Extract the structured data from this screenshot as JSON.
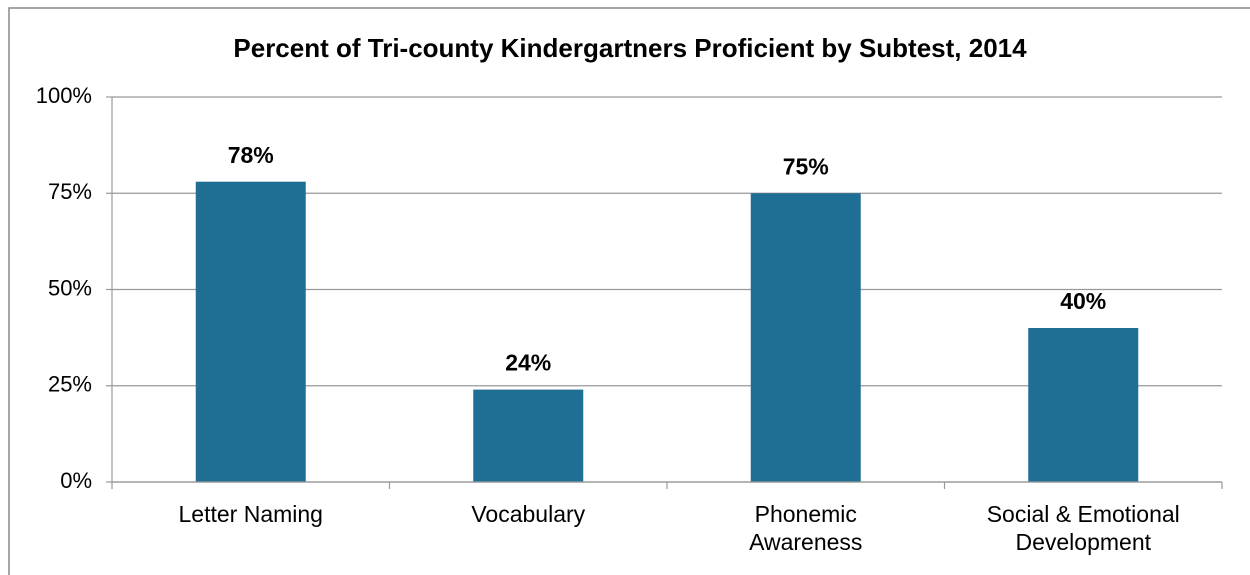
{
  "chart_data": {
    "type": "bar",
    "title": "Percent of Tri-county Kindergartners Proficient by Subtest, 2014",
    "categories": [
      "Letter Naming",
      "Vocabulary",
      "Phonemic\nAwareness",
      "Social & Emotional\nDevelopment"
    ],
    "values": [
      78,
      24,
      75,
      40
    ],
    "value_labels": [
      "78%",
      "24%",
      "75%",
      "40%"
    ],
    "color": "#1f6e94",
    "ylim": [
      0,
      100
    ],
    "yticks": [
      {
        "value": 0,
        "label": "0%"
      },
      {
        "value": 25,
        "label": "25%"
      },
      {
        "value": 50,
        "label": "50%"
      },
      {
        "value": 75,
        "label": "75%"
      },
      {
        "value": 100,
        "label": "100%"
      }
    ],
    "grid": true
  }
}
